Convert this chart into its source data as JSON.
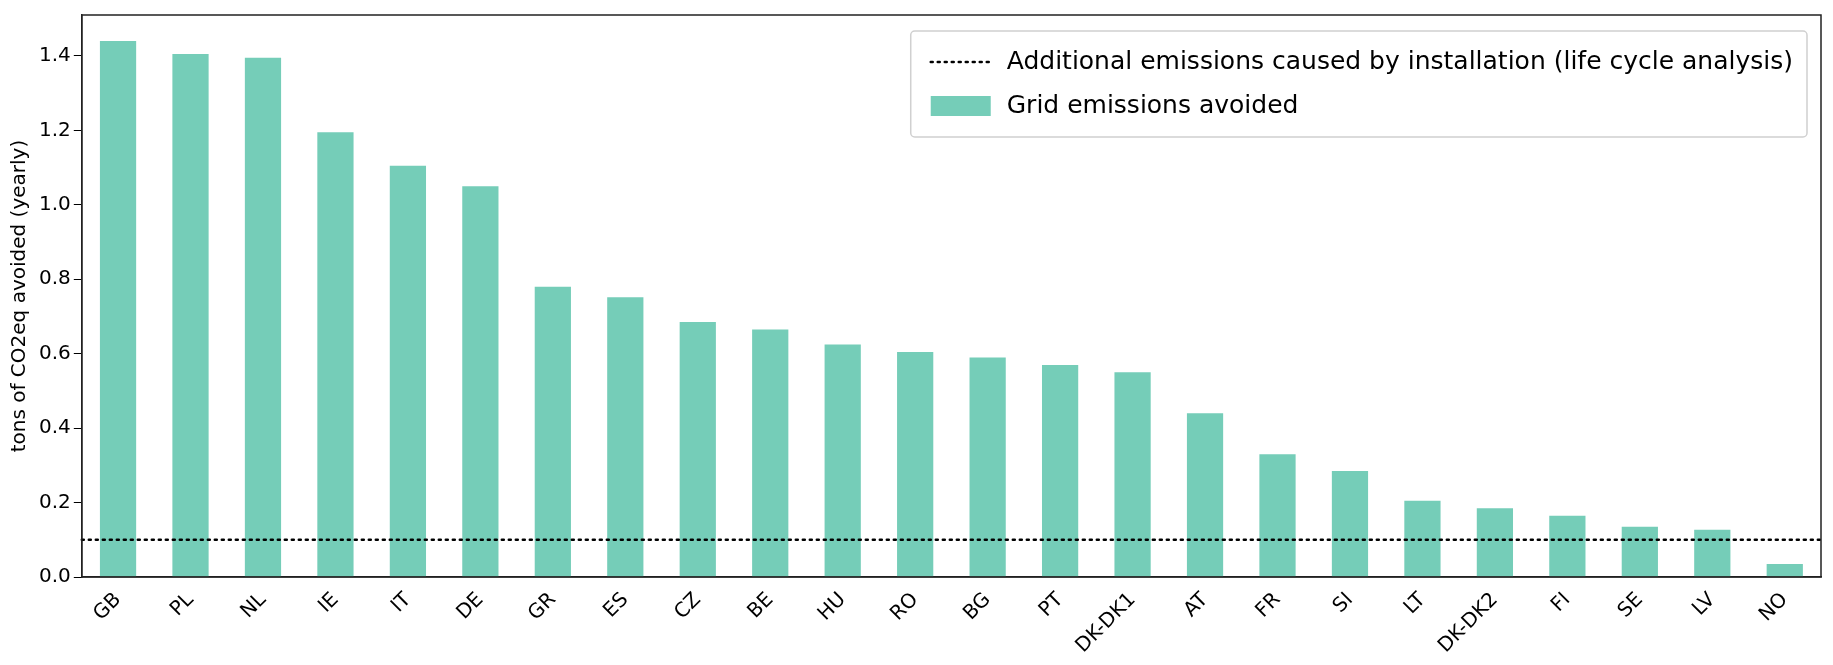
{
  "chart_data": {
    "type": "bar",
    "ylabel": "tons of CO2eq avoided (yearly)",
    "categories": [
      "GB",
      "PL",
      "NL",
      "IE",
      "IT",
      "DE",
      "GR",
      "ES",
      "CZ",
      "BE",
      "HU",
      "RO",
      "BG",
      "PT",
      "DK-DK1",
      "AT",
      "FR",
      "SI",
      "LT",
      "DK-DK2",
      "FI",
      "SE",
      "LV",
      "NO"
    ],
    "series": [
      {
        "name": "Grid emissions avoided",
        "color": "#75cdb8",
        "values": [
          1.44,
          1.405,
          1.395,
          1.195,
          1.105,
          1.05,
          0.78,
          0.752,
          0.685,
          0.665,
          0.625,
          0.605,
          0.59,
          0.57,
          0.55,
          0.44,
          0.33,
          0.285,
          0.205,
          0.185,
          0.165,
          0.135,
          0.127,
          0.035
        ]
      }
    ],
    "ylim": [
      0,
      1.51
    ],
    "yticks": [
      {
        "value": 0.0,
        "label": "0.0"
      },
      {
        "value": 0.2,
        "label": "0.2"
      },
      {
        "value": 0.4,
        "label": "0.4"
      },
      {
        "value": 0.6,
        "label": "0.6"
      },
      {
        "value": 0.8,
        "label": "0.8"
      },
      {
        "value": 1.0,
        "label": "1.0"
      },
      {
        "value": 1.2,
        "label": "1.2"
      },
      {
        "value": 1.4,
        "label": "1.4"
      }
    ],
    "ref_lines": [
      {
        "axis": "y",
        "value": 0.1,
        "label": "Additional emissions caused by installation (life cycle analysis)",
        "color": "#000000",
        "line_style": "dotted"
      }
    ],
    "legend": "top right",
    "grid": false
  }
}
